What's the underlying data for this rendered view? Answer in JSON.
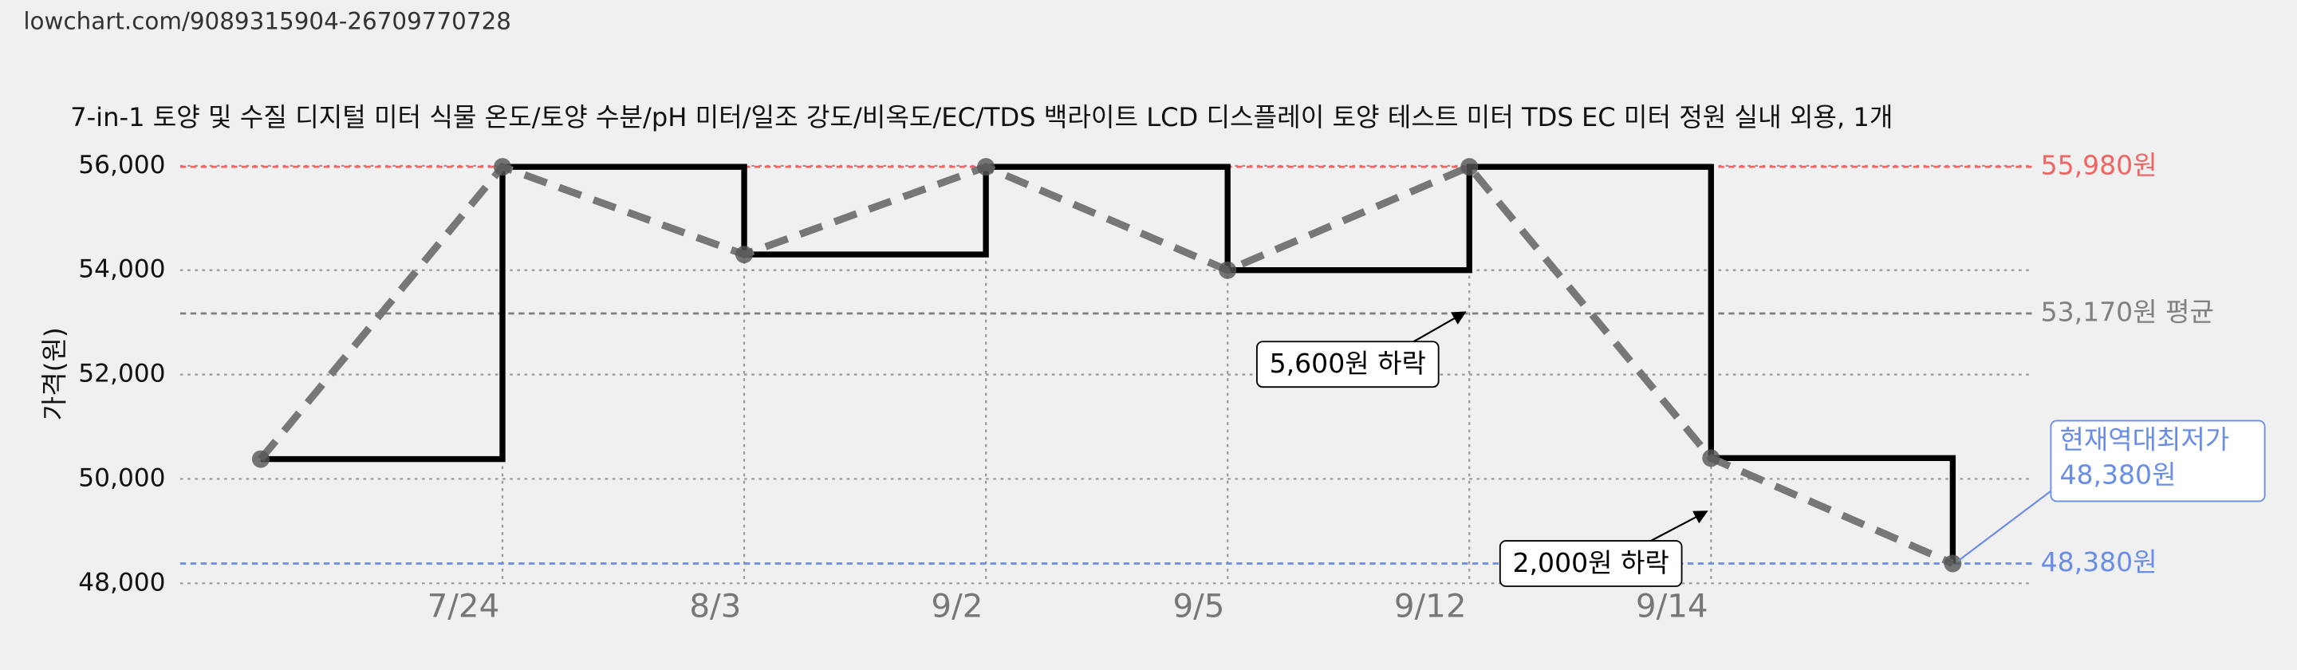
{
  "url": "lowchart.com/9089315904-26709770728",
  "chart_data": {
    "type": "step-line",
    "title": "7-in-1 토양 및 수질 디지털 미터 식물 온도/토양 수분/pH 미터/일조 강도/비옥도/EC/TDS 백라이트 LCD 디스플레이 토양 테스트 미터 TDS EC 미터 정원 실내 외용, 1개",
    "y_label": "가격(원)",
    "categories": [
      null,
      "7/24",
      "8/3",
      "9/2",
      "9/5",
      "9/12",
      "9/14",
      null
    ],
    "series": [
      {
        "color": "#000000",
        "trend_color": "#777777",
        "values": [
          50380,
          55980,
          54300,
          55980,
          54000,
          55980,
          50400,
          48380
        ]
      }
    ],
    "ylim": [
      48000,
      56000
    ],
    "yticks": [
      {
        "value": 48000,
        "label": "48,000"
      },
      {
        "value": 50000,
        "label": "50,000"
      },
      {
        "value": 52000,
        "label": "52,000"
      },
      {
        "value": 54000,
        "label": "54,000"
      },
      {
        "value": 56000,
        "label": "56,000"
      }
    ],
    "grid": true,
    "reference_lines": [
      {
        "value": 55980,
        "label": "55,980원",
        "color": "#f06464"
      },
      {
        "value": 53170,
        "label": "53,170원 평균",
        "color": "#808080"
      },
      {
        "value": 48380,
        "label": "48,380원",
        "color": "#6a8de6"
      }
    ],
    "annotations": [
      "5,600원 하락",
      "2,000원 하락"
    ],
    "callout": [
      "현재역대최저가",
      "48,380원"
    ]
  }
}
